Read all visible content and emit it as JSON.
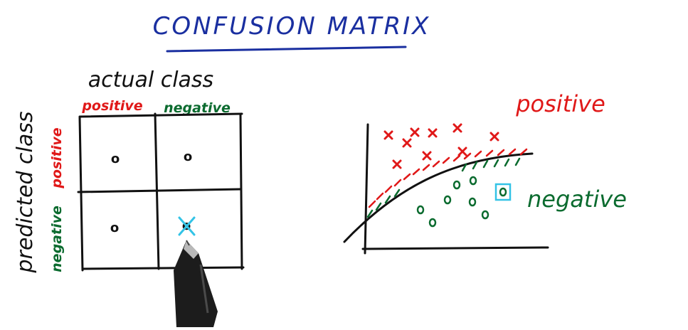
{
  "title": "CONFUSION MATRIX",
  "matrix": {
    "axis_top_label": "actual class",
    "axis_left_label": "predicted class",
    "col_headers": [
      "positive",
      "negative"
    ],
    "row_headers": [
      "positive",
      "negative"
    ],
    "cells": [
      [
        "o",
        "o"
      ],
      [
        "o",
        "o"
      ]
    ],
    "highlighted_cell": "negative-negative"
  },
  "plot": {
    "label_positive": "positive",
    "label_negative": "negative"
  },
  "colors": {
    "title": "#1a2fa0",
    "ink": "#111111",
    "positive": "#e01818",
    "negative": "#0b6b2f",
    "highlight": "#33c3e6"
  }
}
